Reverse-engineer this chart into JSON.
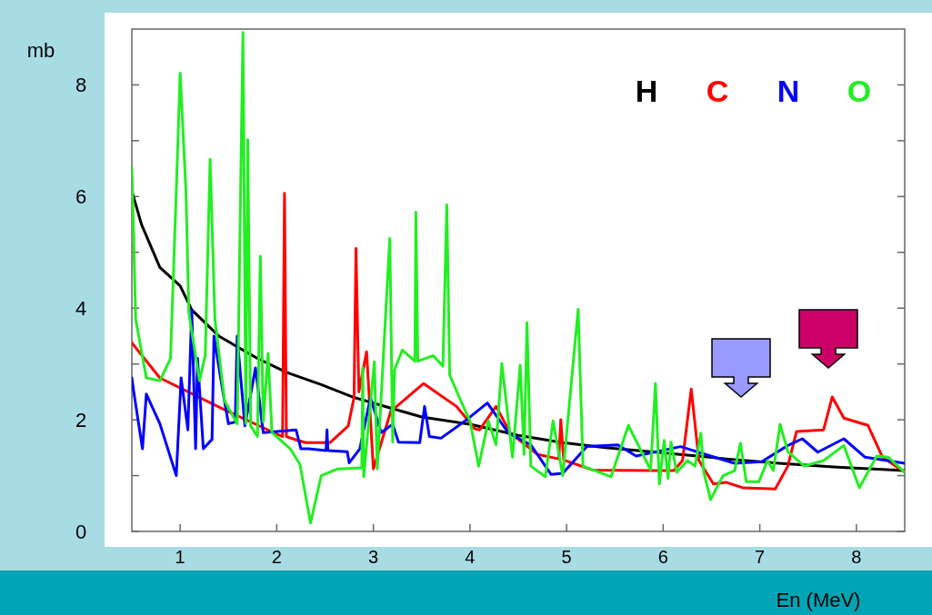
{
  "chart_data": {
    "type": "line",
    "xlabel": "En (MeV)",
    "ylabel": "mb",
    "xlim": [
      0.5,
      8.5
    ],
    "ylim": [
      0,
      9
    ],
    "xticks": [
      1,
      2,
      3,
      4,
      5,
      6,
      7,
      8
    ],
    "yticks": [
      0,
      {
        "value": 1,
        "label": null
      },
      2,
      {
        "value": 3,
        "label": null
      },
      4,
      {
        "value": 5,
        "label": null
      },
      6,
      {
        "value": 7,
        "label": null
      },
      8
    ],
    "grid": false,
    "legend": "top right",
    "series": [
      {
        "name": "H",
        "color": "#000000",
        "x": [
          0.5,
          0.6,
          0.79,
          1,
          1.12,
          1.4,
          1.8,
          2.1,
          2.46,
          2.8,
          3.14,
          3.5,
          4,
          4.5,
          4.96,
          5.4,
          5.87,
          6.3,
          6.65,
          7.2,
          7.8,
          8.5
        ],
        "values": [
          6.1,
          5.5,
          4.73,
          4.4,
          3.97,
          3.5,
          3.1,
          2.85,
          2.63,
          2.4,
          2.23,
          2.05,
          1.92,
          1.72,
          1.59,
          1.5,
          1.43,
          1.36,
          1.3,
          1.22,
          1.15,
          1.09
        ]
      },
      {
        "name": "C",
        "color": "#ff0000",
        "x": [
          0.5,
          0.79,
          1.46,
          1.97,
          2.06,
          2.08,
          2.1,
          2.2,
          2.3,
          2.55,
          2.74,
          2.8,
          2.82,
          2.85,
          2.93,
          3.0,
          3.18,
          3.52,
          3.86,
          4.05,
          4.1,
          4.27,
          4.42,
          4.7,
          4.92,
          4.94,
          4.97,
          5.27,
          5.87,
          6.11,
          6.2,
          6.29,
          6.37,
          6.52,
          6.65,
          6.83,
          7.16,
          7.29,
          7.38,
          7.66,
          7.75,
          7.87,
          8.12,
          8.27,
          8.5
        ],
        "values": [
          3.38,
          2.75,
          2.18,
          1.77,
          1.7,
          6.06,
          1.7,
          1.64,
          1.59,
          1.59,
          1.89,
          2.4,
          5.07,
          2.5,
          3.22,
          1.12,
          2.15,
          2.65,
          2.24,
          1.84,
          1.82,
          2.24,
          1.76,
          1.38,
          1.3,
          2.0,
          1.28,
          1.1,
          1.09,
          1.09,
          1.27,
          2.55,
          1.27,
          0.85,
          0.88,
          0.78,
          0.76,
          1.17,
          1.79,
          1.82,
          2.41,
          2.03,
          1.9,
          1.33,
          1.06
        ]
      },
      {
        "name": "N",
        "color": "#0000ff",
        "x": [
          0.5,
          0.52,
          0.61,
          0.65,
          0.79,
          0.96,
          1.01,
          1.08,
          1.12,
          1.16,
          1.18,
          1.24,
          1.33,
          1.35,
          1.43,
          1.5,
          1.57,
          1.59,
          1.67,
          1.78,
          1.86,
          2.2,
          2.25,
          2.33,
          2.51,
          2.52,
          2.53,
          2.73,
          2.75,
          2.86,
          2.97,
          3.08,
          3.2,
          3.26,
          3.48,
          3.53,
          3.58,
          3.7,
          3.95,
          4.18,
          4.4,
          4.63,
          4.84,
          4.96,
          5.21,
          5.53,
          5.72,
          6.18,
          6.49,
          6.74,
          7.02,
          7.29,
          7.44,
          7.6,
          7.87,
          8.09,
          8.5
        ],
        "values": [
          2.75,
          2.5,
          1.48,
          2.46,
          1.93,
          1.0,
          2.75,
          1.82,
          3.97,
          1.48,
          3.1,
          1.48,
          1.65,
          3.5,
          2.63,
          1.93,
          1.96,
          3.5,
          1.89,
          2.93,
          1.77,
          1.82,
          1.48,
          1.48,
          1.45,
          1.82,
          1.45,
          1.43,
          1.23,
          1.48,
          2.4,
          1.77,
          1.92,
          1.6,
          1.59,
          2.24,
          1.7,
          1.67,
          1.98,
          2.3,
          1.76,
          1.55,
          1.02,
          1.04,
          1.52,
          1.55,
          1.35,
          1.52,
          1.35,
          1.22,
          1.25,
          1.54,
          1.66,
          1.42,
          1.66,
          1.33,
          1.22
        ]
      },
      {
        "name": "O",
        "color": "#22ee22",
        "x": [
          0.5,
          0.54,
          0.65,
          0.79,
          0.9,
          0.96,
          1.0,
          1.06,
          1.09,
          1.2,
          1.26,
          1.31,
          1.36,
          1.46,
          1.59,
          1.65,
          1.68,
          1.7,
          1.73,
          1.8,
          1.83,
          1.86,
          1.91,
          1.95,
          2.14,
          2.24,
          2.35,
          2.46,
          2.63,
          2.88,
          2.89,
          2.9,
          3.01,
          3.04,
          3.17,
          3.2,
          3.22,
          3.3,
          3.43,
          3.44,
          3.46,
          3.62,
          3.72,
          3.76,
          3.79,
          3.9,
          4.0,
          4.09,
          4.19,
          4.27,
          4.33,
          4.44,
          4.52,
          4.56,
          4.59,
          4.63,
          4.78,
          4.86,
          4.96,
          5.12,
          5.17,
          5.46,
          5.64,
          5.87,
          5.92,
          5.96,
          6.01,
          6.05,
          6.08,
          6.14,
          6.25,
          6.33,
          6.39,
          6.42,
          6.49,
          6.62,
          6.74,
          6.8,
          6.86,
          6.99,
          7.08,
          7.14,
          7.21,
          7.29,
          7.46,
          7.66,
          7.87,
          8.03,
          8.21,
          8.33,
          8.5
        ],
        "values": [
          6.52,
          3.8,
          2.75,
          2.7,
          3.1,
          6.11,
          8.21,
          6.1,
          3.92,
          2.7,
          3.16,
          6.67,
          3.8,
          2.34,
          1.93,
          8.94,
          1.93,
          7.02,
          1.89,
          1.7,
          4.93,
          1.96,
          3.19,
          1.77,
          1.48,
          1.2,
          0.15,
          1.0,
          1.12,
          1.14,
          2.93,
          0.98,
          3.04,
          1.12,
          5.25,
          1.6,
          2.9,
          3.25,
          3.05,
          5.72,
          3.05,
          3.15,
          2.96,
          5.85,
          2.8,
          2.36,
          1.98,
          1.17,
          1.98,
          1.55,
          3.01,
          1.33,
          2.98,
          1.38,
          3.74,
          1.17,
          0.98,
          1.98,
          1.0,
          3.98,
          1.17,
          0.98,
          1.9,
          1.1,
          2.65,
          0.85,
          1.63,
          0.95,
          1.6,
          1.06,
          1.27,
          1.17,
          1.76,
          1.06,
          0.57,
          1.0,
          1.09,
          1.58,
          0.89,
          0.89,
          1.27,
          1.09,
          1.92,
          1.43,
          1.17,
          1.27,
          1.54,
          0.78,
          1.35,
          1.33,
          1.06
        ]
      }
    ]
  }
}
